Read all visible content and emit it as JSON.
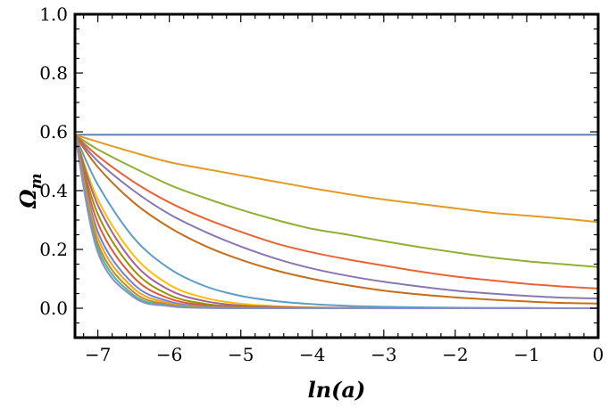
{
  "chart_data": {
    "type": "line",
    "title": "",
    "xlabel": "ln(a)",
    "ylabel": "Ωm",
    "ylabel_main": "Ω",
    "ylabel_sub": "m",
    "xlim": [
      -7.32,
      0
    ],
    "ylim": [
      -0.1,
      1.0
    ],
    "x_ticks": [
      -7,
      -6,
      -5,
      -4,
      -3,
      -2,
      -1,
      0
    ],
    "x_tick_labels": [
      "−7",
      "−6",
      "−5",
      "−4",
      "−3",
      "−2",
      "−1",
      "0"
    ],
    "y_ticks": [
      0.0,
      0.2,
      0.4,
      0.6,
      0.8,
      1.0
    ],
    "y_tick_labels": [
      "0.0",
      "0.2",
      "0.4",
      "0.6",
      "0.8",
      "1.0"
    ],
    "grid": false,
    "legend": "none",
    "x": [
      -7.32,
      -7.0,
      -6.5,
      -6.0,
      -5.5,
      -5.0,
      -4.5,
      -4.0,
      -3.5,
      -3.0,
      -2.5,
      -2.0,
      -1.5,
      -1.0,
      -0.5,
      0.0
    ],
    "series": [
      {
        "color": "#5e81b5",
        "values": [
          0.59,
          0.59,
          0.59,
          0.59,
          0.59,
          0.59,
          0.59,
          0.59,
          0.59,
          0.59,
          0.59,
          0.59,
          0.59,
          0.59,
          0.59,
          0.59
        ]
      },
      {
        "color": "#e19c24",
        "values": [
          0.59,
          0.566,
          0.53,
          0.497,
          0.474,
          0.452,
          0.43,
          0.408,
          0.388,
          0.37,
          0.355,
          0.34,
          0.325,
          0.315,
          0.305,
          0.293
        ]
      },
      {
        "color": "#8fb032",
        "values": [
          0.59,
          0.54,
          0.478,
          0.42,
          0.375,
          0.335,
          0.3,
          0.27,
          0.25,
          0.228,
          0.208,
          0.19,
          0.173,
          0.16,
          0.15,
          0.14
        ]
      },
      {
        "color": "#eb6235",
        "values": [
          0.59,
          0.518,
          0.43,
          0.36,
          0.305,
          0.26,
          0.22,
          0.19,
          0.166,
          0.145,
          0.125,
          0.108,
          0.095,
          0.083,
          0.074,
          0.067
        ]
      },
      {
        "color": "#8778b3",
        "values": [
          0.59,
          0.5,
          0.4,
          0.32,
          0.26,
          0.21,
          0.168,
          0.135,
          0.11,
          0.09,
          0.074,
          0.06,
          0.05,
          0.042,
          0.036,
          0.033
        ]
      },
      {
        "color": "#c56e1a",
        "values": [
          0.59,
          0.48,
          0.36,
          0.275,
          0.212,
          0.165,
          0.128,
          0.1,
          0.078,
          0.06,
          0.047,
          0.037,
          0.029,
          0.023,
          0.018,
          0.016
        ]
      },
      {
        "color": "#5d9ec7",
        "values": [
          0.59,
          0.42,
          0.24,
          0.135,
          0.075,
          0.042,
          0.024,
          0.014,
          0.008,
          0.005,
          0.003,
          0.002,
          0.001,
          0.001,
          0.0,
          0.0
        ]
      },
      {
        "color": "#ffbf00",
        "values": [
          0.59,
          0.37,
          0.18,
          0.08,
          0.035,
          0.015,
          0.007,
          0.003,
          0.001,
          0.0,
          0.0,
          0.0,
          0.0,
          0.0,
          0.0,
          0.0
        ]
      },
      {
        "color": "#a5609d",
        "values": [
          0.59,
          0.35,
          0.155,
          0.062,
          0.024,
          0.009,
          0.004,
          0.002,
          0.001,
          0.0,
          0.0,
          0.0,
          0.0,
          0.0,
          0.0,
          0.0
        ]
      },
      {
        "color": "#929600",
        "values": [
          0.59,
          0.32,
          0.13,
          0.045,
          0.015,
          0.005,
          0.002,
          0.001,
          0.0,
          0.0,
          0.0,
          0.0,
          0.0,
          0.0,
          0.0,
          0.0
        ]
      },
      {
        "color": "#e95536",
        "values": [
          0.59,
          0.29,
          0.105,
          0.033,
          0.01,
          0.003,
          0.001,
          0.0,
          0.0,
          0.0,
          0.0,
          0.0,
          0.0,
          0.0,
          0.0,
          0.0
        ]
      },
      {
        "color": "#6685d9",
        "values": [
          0.59,
          0.26,
          0.082,
          0.023,
          0.006,
          0.002,
          0.0,
          0.0,
          0.0,
          0.0,
          0.0,
          0.0,
          0.0,
          0.0,
          0.0,
          0.0
        ]
      },
      {
        "color": "#f89f13",
        "values": [
          0.59,
          0.24,
          0.068,
          0.017,
          0.004,
          0.001,
          0.0,
          0.0,
          0.0,
          0.0,
          0.0,
          0.0,
          0.0,
          0.0,
          0.0,
          0.0
        ]
      },
      {
        "color": "#bc8b27",
        "values": [
          0.59,
          0.22,
          0.055,
          0.012,
          0.003,
          0.001,
          0.0,
          0.0,
          0.0,
          0.0,
          0.0,
          0.0,
          0.0,
          0.0,
          0.0,
          0.0
        ]
      },
      {
        "color": "#4fb4a2",
        "values": [
          0.59,
          0.205,
          0.045,
          0.009,
          0.002,
          0.0,
          0.0,
          0.0,
          0.0,
          0.0,
          0.0,
          0.0,
          0.0,
          0.0,
          0.0,
          0.0
        ]
      },
      {
        "color": "#8a8ec8",
        "values": [
          0.59,
          0.19,
          0.038,
          0.007,
          0.001,
          0.0,
          0.0,
          0.0,
          0.0,
          0.0,
          0.0,
          0.0,
          0.0,
          0.0,
          0.0,
          0.0
        ]
      }
    ]
  }
}
